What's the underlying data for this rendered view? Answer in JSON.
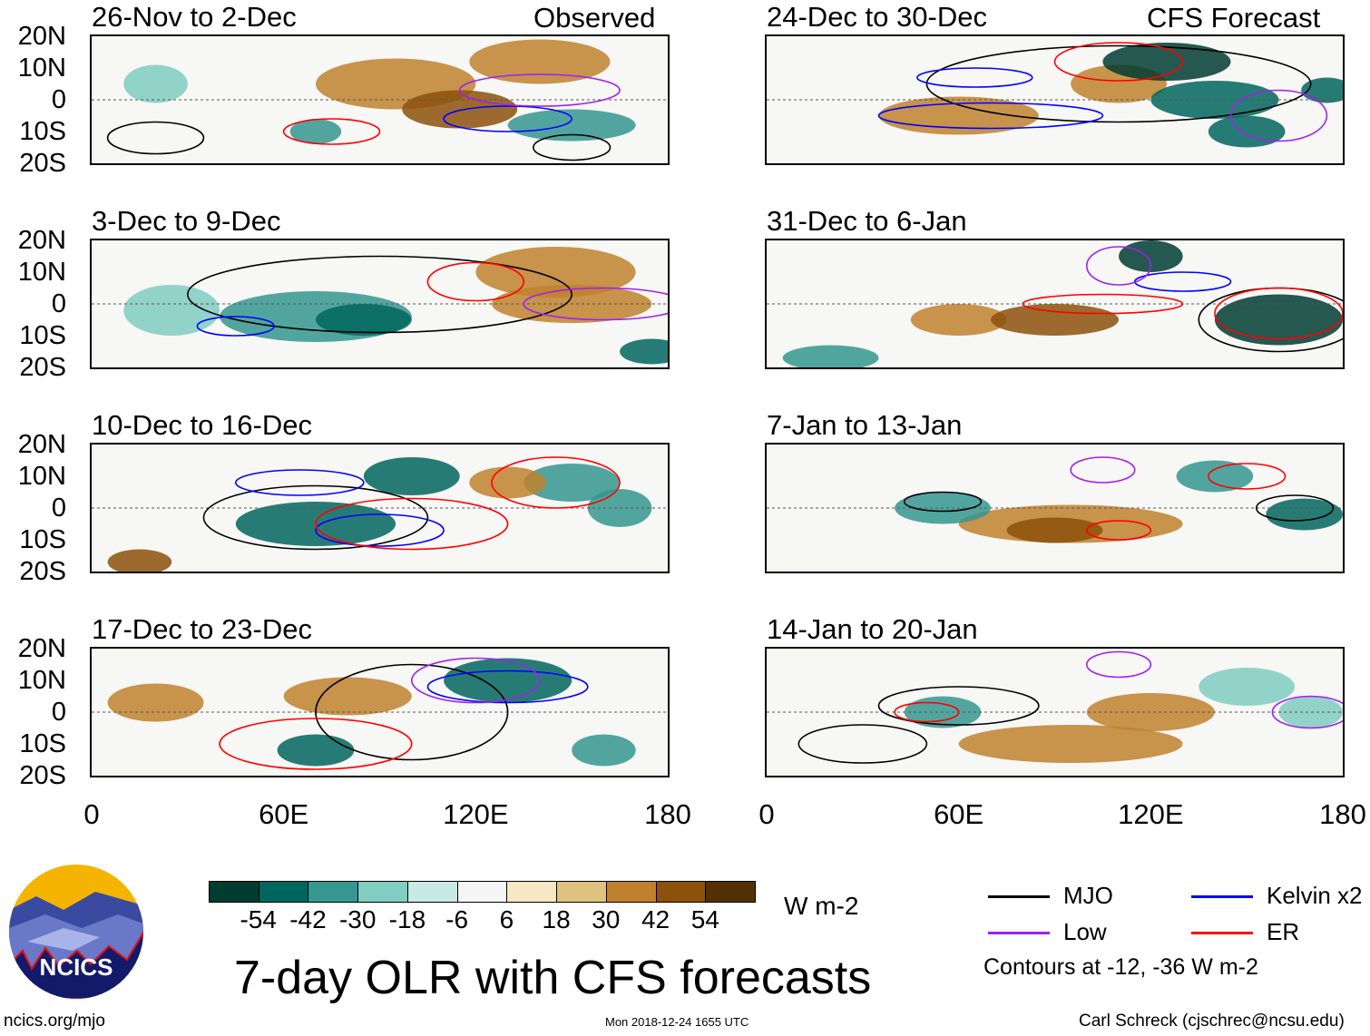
{
  "header": {
    "observed_label": "Observed",
    "forecast_label": "CFS Forecast"
  },
  "panels": [
    {
      "title": "26-Nov to 2-Dec",
      "kind": "observed"
    },
    {
      "title": "3-Dec to 9-Dec",
      "kind": "observed"
    },
    {
      "title": "10-Dec to 16-Dec",
      "kind": "observed"
    },
    {
      "title": "17-Dec to 23-Dec",
      "kind": "observed"
    },
    {
      "title": "24-Dec to 30-Dec",
      "kind": "forecast"
    },
    {
      "title": "31-Dec to 6-Jan",
      "kind": "forecast"
    },
    {
      "title": "7-Jan to 13-Jan",
      "kind": "forecast"
    },
    {
      "title": "14-Jan to 20-Jan",
      "kind": "forecast"
    }
  ],
  "lat_labels": [
    "20N",
    "10N",
    "0",
    "10S",
    "20S"
  ],
  "lon_labels": [
    "0",
    "60E",
    "120E",
    "180"
  ],
  "colorbar": {
    "colors": [
      "#003c30",
      "#01665e",
      "#35978f",
      "#80cdc1",
      "#c7eae5",
      "#f5f5f5",
      "#f6e8c3",
      "#dfc27d",
      "#bf812d",
      "#8c510a",
      "#543005"
    ],
    "labels": [
      "-54",
      "-42",
      "-30",
      "-18",
      "-6",
      "6",
      "18",
      "30",
      "42",
      "54"
    ],
    "units": "W m-2"
  },
  "legend": {
    "items": [
      {
        "label": "MJO",
        "color": "#000000"
      },
      {
        "label": "Kelvin x2",
        "color": "#0000ff"
      },
      {
        "label": "Low",
        "color": "#a020f0"
      },
      {
        "label": "ER",
        "color": "#ff0000"
      }
    ],
    "contours_note": "Contours at -12, -36 W m-2"
  },
  "title": "7-day OLR with CFS forecasts",
  "logo": {
    "text": "NCICS"
  },
  "footer": {
    "url": "ncics.org/mjo",
    "timestamp": "Mon 2018-12-24 1655 UTC",
    "author": "Carl Schreck (cjschrec@ncsu.edu)"
  }
}
